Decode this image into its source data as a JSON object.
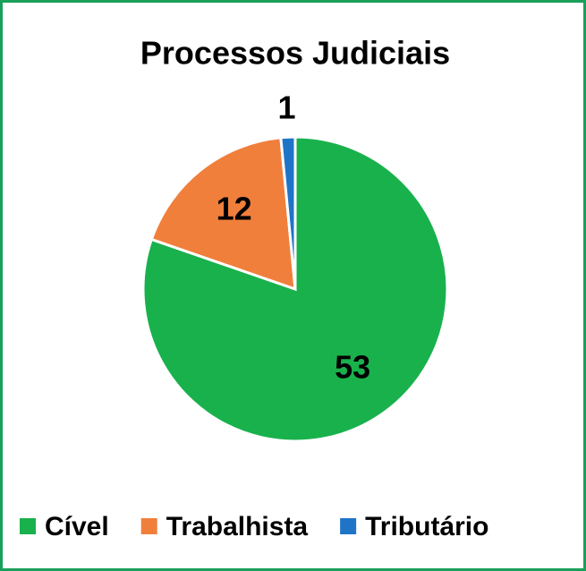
{
  "chart_data": {
    "type": "pie",
    "title": "Processos Judiciais",
    "categories": [
      "Cível",
      "Trabalhista",
      "Tributário"
    ],
    "values": [
      53,
      12,
      1
    ],
    "colors": [
      "#19b14c",
      "#f07f3c",
      "#1f74c8"
    ],
    "legend": "bottom"
  }
}
